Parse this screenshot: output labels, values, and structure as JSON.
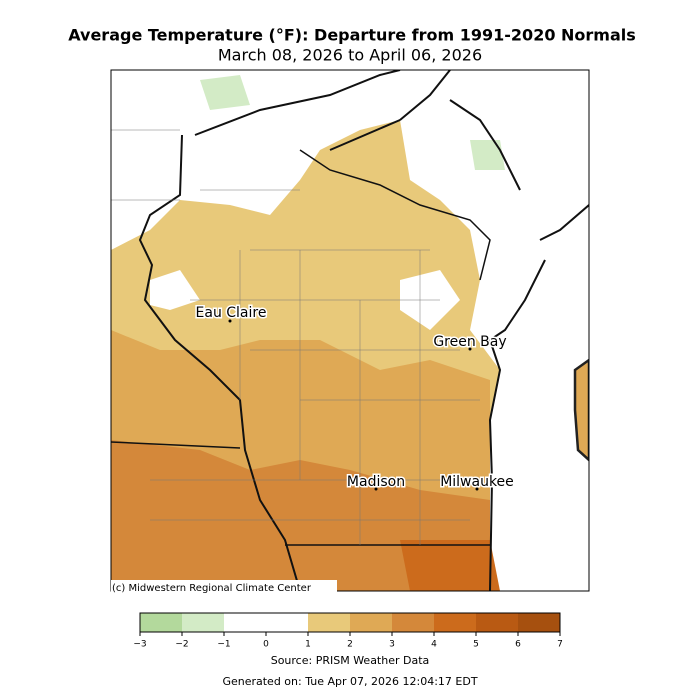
{
  "title": "Average Temperature (°F): Departure from 1991-2020 Normals",
  "subtitle": "March 08, 2026 to April 06, 2026",
  "cities": [
    {
      "name": "Eau Claire"
    },
    {
      "name": "Green Bay"
    },
    {
      "name": "Madison"
    },
    {
      "name": "Milwaukee"
    }
  ],
  "copyright": "(c) Midwestern Regional Climate Center",
  "colorbar": {
    "bounds": [
      -3,
      -2,
      -1,
      0,
      1,
      2,
      3,
      4,
      5,
      6,
      7
    ],
    "colors": [
      "#b3d99c",
      "#d3ebc6",
      "#ffffff",
      "#ffffff",
      "#e8c97a",
      "#dfa955",
      "#d4883a",
      "#cc6b1c",
      "#b95a13",
      "#a6500f"
    ],
    "ticks": [
      {
        "value": -3,
        "label": "−3"
      },
      {
        "value": -2,
        "label": "−2"
      },
      {
        "value": -1,
        "label": "−1"
      },
      0,
      1,
      2,
      3,
      4,
      5,
      6,
      7
    ]
  },
  "source": "Source: PRISM Weather Data",
  "generated": "Generated on: Tue Apr 07, 2026 12:04:17 EDT"
}
